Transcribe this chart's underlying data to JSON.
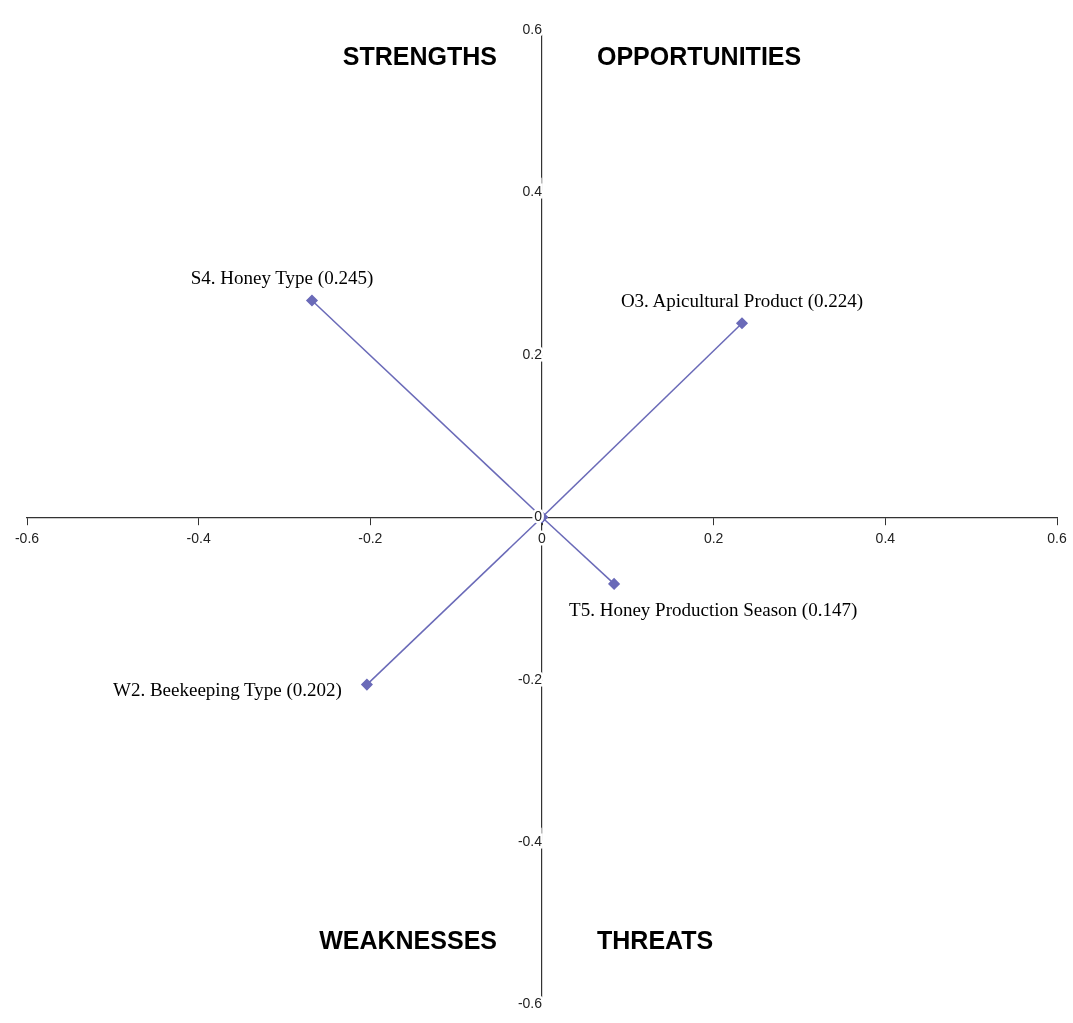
{
  "chart_data": {
    "type": "line",
    "annotations": [
      "STRENGTHS",
      "OPPORTUNITIES",
      "WEAKNESSES",
      "THREATS"
    ],
    "xlim": [
      -0.6,
      0.6
    ],
    "ylim": [
      -0.6,
      0.6
    ],
    "xticks": [
      -0.6,
      -0.4,
      -0.2,
      0,
      0.2,
      0.4,
      0.6
    ],
    "yticks": [
      -0.6,
      -0.4,
      -0.2,
      0,
      0.2,
      0.4,
      0.6
    ],
    "grid": false,
    "legend": false,
    "marker": "diamond",
    "line_style": "solid",
    "series": [
      {
        "name": "S4. Honey Type (0.245)",
        "color": "#6a6ab8",
        "x": [
          0,
          -0.268
        ],
        "values": [
          0,
          0.267
        ]
      },
      {
        "name": "O3. Apicultural Product (0.224)",
        "color": "#6a6ab8",
        "x": [
          0,
          0.233
        ],
        "values": [
          0,
          0.239
        ]
      },
      {
        "name": "T5. Honey Production Season (0.147)",
        "color": "#6a6ab8",
        "x": [
          0,
          0.084
        ],
        "values": [
          0,
          -0.082
        ]
      },
      {
        "name": "W2. Beekeeping Type (0.202)",
        "color": "#6a6ab8",
        "x": [
          0,
          -0.204
        ],
        "values": [
          0,
          -0.206
        ]
      }
    ]
  }
}
